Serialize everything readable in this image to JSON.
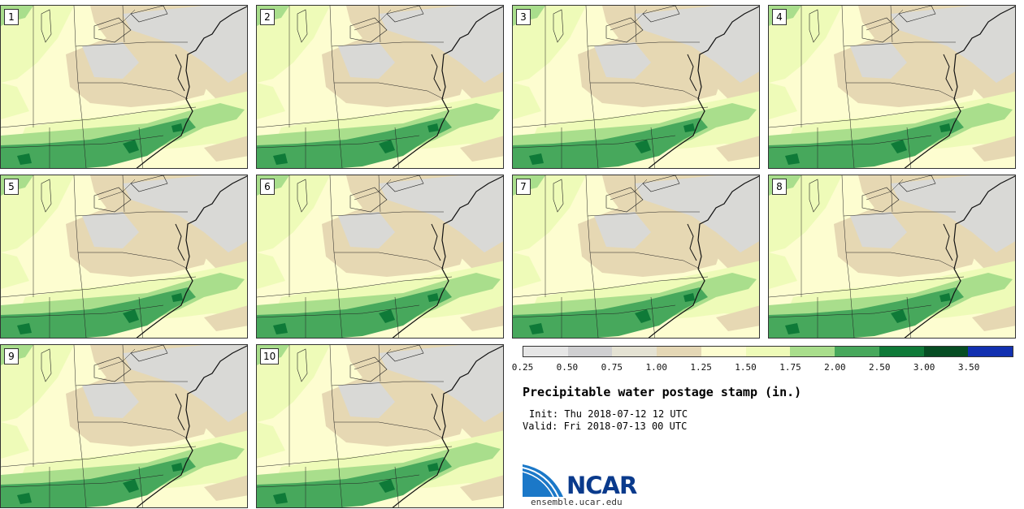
{
  "panels": [
    {
      "label": "1"
    },
    {
      "label": "2"
    },
    {
      "label": "3"
    },
    {
      "label": "4"
    },
    {
      "label": "5"
    },
    {
      "label": "6"
    },
    {
      "label": "7"
    },
    {
      "label": "8"
    },
    {
      "label": "9"
    },
    {
      "label": "10"
    }
  ],
  "colorbar": {
    "ticks": [
      "0.25",
      "0.50",
      "0.75",
      "1.00",
      "1.25",
      "1.50",
      "1.75",
      "2.00",
      "2.50",
      "3.00",
      "3.50"
    ],
    "colors": [
      "#e6e6e6",
      "#cfcfd1",
      "#e4e2d3",
      "#e4d7b5",
      "#fdfdd0",
      "#eefbb8",
      "#a9de8c",
      "#47a85c",
      "#0f7a38",
      "#064d23",
      "#1230b0"
    ]
  },
  "colors": {
    "gray": "#d9d9d6",
    "tan": "#e6d8b3",
    "cream": "#fdfdd0",
    "lightgreen": "#eefbb8",
    "green": "#a9de8c",
    "midgreen": "#47a85c",
    "darkgreen": "#0f7a38",
    "brand": "#0a3a8c",
    "logo_blue": "#1b78c8"
  },
  "title": "Precipitable water postage stamp (in.)",
  "init": "Init: Thu 2018-07-12 12 UTC",
  "valid": "Valid: Fri 2018-07-13 00 UTC",
  "logo": {
    "text": "NCAR",
    "url": "ensemble.ucar.edu"
  }
}
